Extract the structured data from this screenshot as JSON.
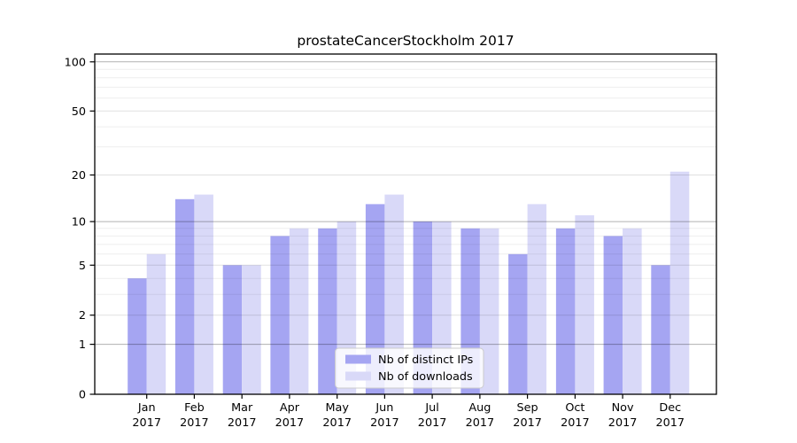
{
  "figure": {
    "title": "prostateCancerStockholm 2017"
  },
  "chart_data": {
    "type": "bar",
    "title": "prostateCancerStockholm 2017",
    "categories": [
      "Jan",
      "Feb",
      "Mar",
      "Apr",
      "May",
      "Jun",
      "Jul",
      "Aug",
      "Sep",
      "Oct",
      "Nov",
      "Dec"
    ],
    "category_year": "2017",
    "series": [
      {
        "name": "Nb of distinct IPs",
        "color": "#a5a5f2",
        "values": [
          4,
          14,
          5,
          8,
          9,
          13,
          10,
          9,
          6,
          9,
          8,
          5
        ]
      },
      {
        "name": "Nb of downloads",
        "color": "#d9d9f8",
        "values": [
          6,
          15,
          5,
          9,
          10,
          15,
          10,
          9,
          13,
          11,
          9,
          21
        ]
      }
    ],
    "xlabel": "",
    "ylabel": "",
    "yscale": "log1p",
    "ylim": [
      0,
      112
    ],
    "y_ticks": [
      0,
      1,
      2,
      5,
      10,
      20,
      50,
      100
    ],
    "grid": true,
    "y_gridlines_major": [
      1,
      10,
      100
    ],
    "y_gridlines_mid": [
      2,
      5,
      20,
      50
    ],
    "y_gridlines_minor": [
      3,
      4,
      6,
      7,
      8,
      9,
      30,
      40,
      60,
      70,
      80,
      90
    ],
    "legend_position": "lower center"
  },
  "colors": {
    "bar_distinct_ips": "#a5a5f2",
    "bar_downloads": "#d9d9f8",
    "axis": "#000000",
    "grid_major": "rgba(0,0,0,0.31)",
    "grid_mid": "rgba(0,0,0,0.12)",
    "grid_minor": "rgba(0,0,0,0.065)",
    "legend_bg": "rgba(255,255,255,0.8)",
    "legend_border": "#cccccc",
    "text": "#000000"
  }
}
